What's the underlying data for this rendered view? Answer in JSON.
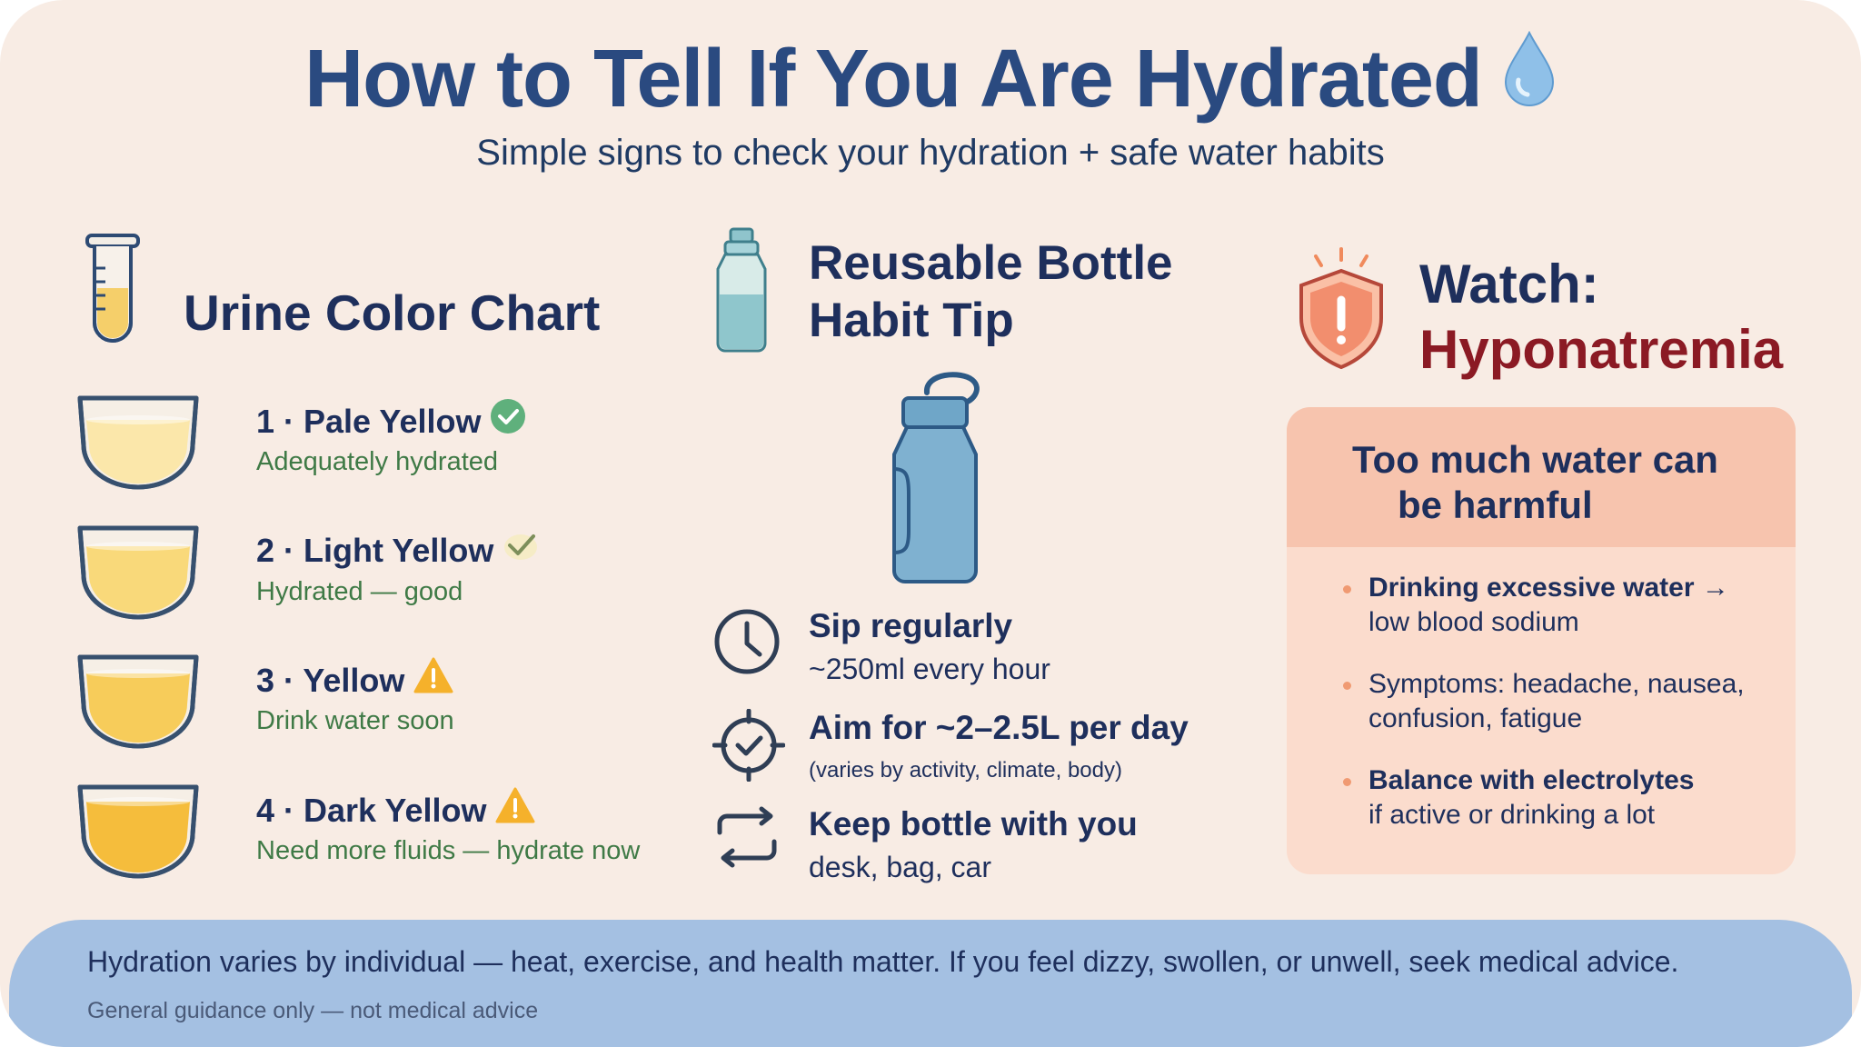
{
  "header": {
    "title": "How to Tell If You Are Hydrated",
    "subtitle": "Simple signs to check your hydration + safe water habits"
  },
  "urine_chart": {
    "title": "Urine Color Chart",
    "items": [
      {
        "label": "1 · Pale Yellow",
        "desc": "Adequately hydrated",
        "fill_color": "#fbe7aa",
        "status": "check-circle-icon"
      },
      {
        "label": "2 · Light Yellow",
        "desc": "Hydrated — good",
        "fill_color": "#f9d97a",
        "status": "check-icon"
      },
      {
        "label": "3 · Yellow",
        "desc": "Drink water soon",
        "fill_color": "#f7cc5a",
        "status": "warning-icon"
      },
      {
        "label": "4 · Dark Yellow",
        "desc": "Need more fluids — hydrate now",
        "fill_color": "#f5bd3c",
        "status": "warning-icon"
      }
    ]
  },
  "bottle_tip": {
    "title_line1": "Reusable Bottle",
    "title_line2": "Habit Tip",
    "tips": [
      {
        "icon": "clock-icon",
        "title": "Sip regularly",
        "detail": "~250ml every hour"
      },
      {
        "icon": "target-check-icon",
        "title": "Aim for ~2–2.5L per day",
        "detail": "(varies by activity, climate, body)"
      },
      {
        "icon": "cycle-arrows-icon",
        "title": "Keep bottle with you",
        "detail": "desk, bag, car"
      }
    ]
  },
  "hyponatremia": {
    "title_line1": "Watch:",
    "title_line2": "Hyponatremia",
    "box_title_line1": "Too much water can",
    "box_title_line2": "be harmful",
    "bullets": [
      {
        "line1": "Drinking excessive water →",
        "line2": "low blood sodium",
        "bold_line1": true
      },
      {
        "line1": "Symptoms: headache, nausea,",
        "line2": "confusion, fatigue",
        "bold_line1": false
      },
      {
        "line1": "Balance with electrolytes",
        "line2": "if active or drinking a lot",
        "bold_line1": true
      }
    ]
  },
  "footer": {
    "note": "Hydration varies by individual — heat, exercise, and health matter. If you feel dizzy, swollen, or unwell, seek medical advice.",
    "disclaimer": "General guidance only — not medical advice"
  },
  "colors": {
    "background": "#f8ece4",
    "title": "#2a4a80",
    "navy": "#1e2f5c",
    "green": "#3f7a46",
    "warning_red": "#8b1a24",
    "box_fill": "#fbdccd",
    "footer_blue": "#a4c0e2"
  }
}
